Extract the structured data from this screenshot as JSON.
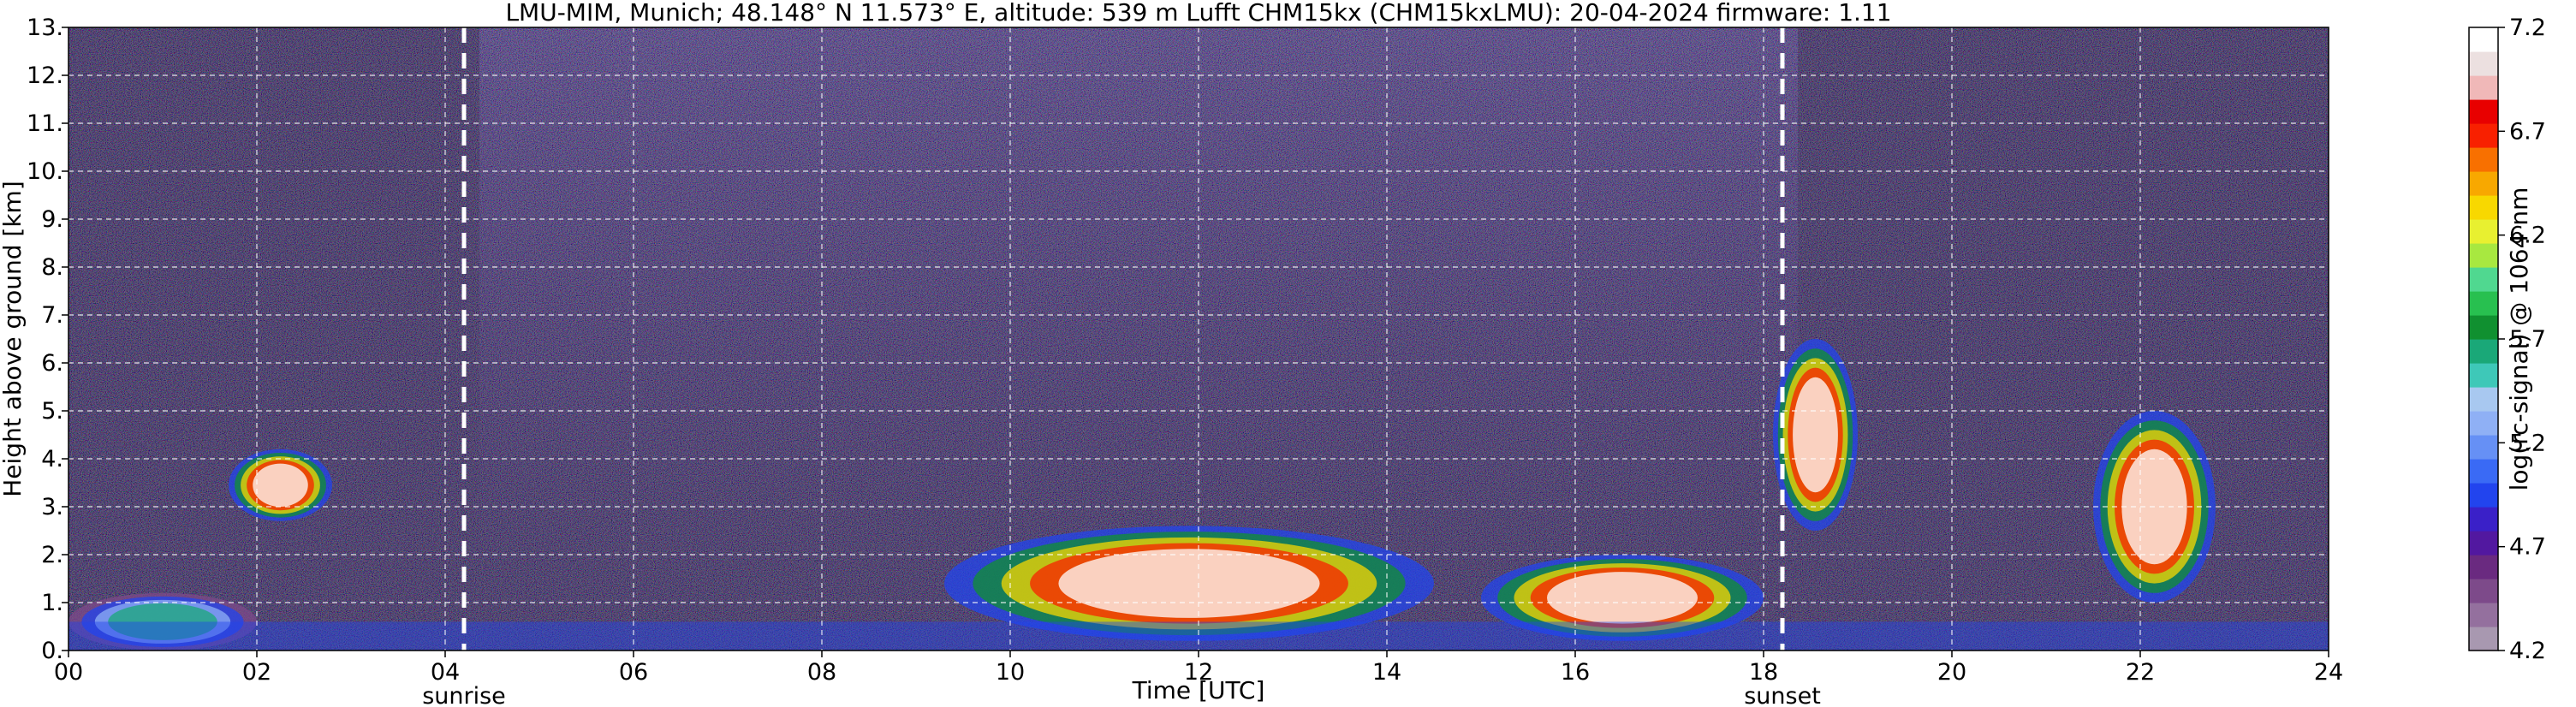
{
  "title": "LMU-MIM, Munich; 48.148° N 11.573° E, altitude: 539 m    Lufft CHM15kx (CHM15kxLMU): 20-04-2024    firmware: 1.11",
  "chart_data": {
    "type": "heatmap",
    "xlabel": "Time [UTC]",
    "ylabel": "Height above ground [km]",
    "colorbar_label": "log(rc-signal) @ 1064 nm",
    "xlim": [
      0,
      24
    ],
    "ylim": [
      0,
      13
    ],
    "x_ticks": [
      0,
      2,
      4,
      6,
      8,
      10,
      12,
      14,
      16,
      18,
      20,
      22,
      24
    ],
    "x_tick_labels": [
      "00",
      "02",
      "04",
      "06",
      "08",
      "10",
      "12",
      "14",
      "16",
      "18",
      "20",
      "22",
      "24"
    ],
    "y_ticks": [
      0,
      1,
      2,
      3,
      4,
      5,
      6,
      7,
      8,
      9,
      10,
      11,
      12,
      13
    ],
    "y_tick_labels": [
      "0.",
      "1.",
      "2.",
      "3.",
      "4.",
      "5.",
      "6.",
      "7.",
      "8.",
      "9.",
      "10.",
      "11.",
      "12.",
      "13."
    ],
    "grid": true,
    "colorbar": {
      "range": [
        4.2,
        7.2
      ],
      "ticks": [
        4.2,
        4.7,
        5.2,
        5.7,
        6.2,
        6.7,
        7.2
      ],
      "tick_labels": [
        "4.2",
        "4.7",
        "5.2",
        "5.7",
        "6.2",
        "6.7",
        "7.2"
      ],
      "colors": [
        "#a898b0",
        "#94709e",
        "#7d4a8a",
        "#6a2a80",
        "#5218a0",
        "#3a20c8",
        "#2244ee",
        "#3a6af5",
        "#6690f5",
        "#8fb0f5",
        "#a8c8f0",
        "#3ec8b8",
        "#1aa878",
        "#109030",
        "#28c050",
        "#50d890",
        "#a8e840",
        "#e8f030",
        "#f8d800",
        "#f8a800",
        "#f87000",
        "#f82000",
        "#e80000",
        "#f0b8b8",
        "#ece0e0",
        "#ffffff"
      ]
    },
    "background_color": "#1a1028",
    "events": [
      {
        "name": "sunrise",
        "time": 4.2
      },
      {
        "name": "sunset",
        "time": 18.2
      }
    ],
    "features": [
      {
        "kind": "boundary_layer",
        "time_range": [
          0,
          2
        ],
        "height_range": [
          0,
          1.2
        ]
      },
      {
        "kind": "elevated_layer",
        "time_range": [
          1.7,
          2.8
        ],
        "height_range": [
          2.7,
          4.2
        ]
      },
      {
        "kind": "dense_cloud",
        "time_range": [
          9.3,
          14.5
        ],
        "height_range": [
          0.2,
          2.6
        ]
      },
      {
        "kind": "dense_cloud",
        "time_range": [
          15.0,
          18.0
        ],
        "height_range": [
          0.2,
          2.0
        ]
      },
      {
        "kind": "dense_cloud",
        "time_range": [
          18.1,
          19.0
        ],
        "height_range": [
          2.5,
          6.5
        ]
      },
      {
        "kind": "dense_cloud",
        "time_range": [
          21.5,
          22.8
        ],
        "height_range": [
          1.0,
          5.0
        ]
      }
    ]
  }
}
